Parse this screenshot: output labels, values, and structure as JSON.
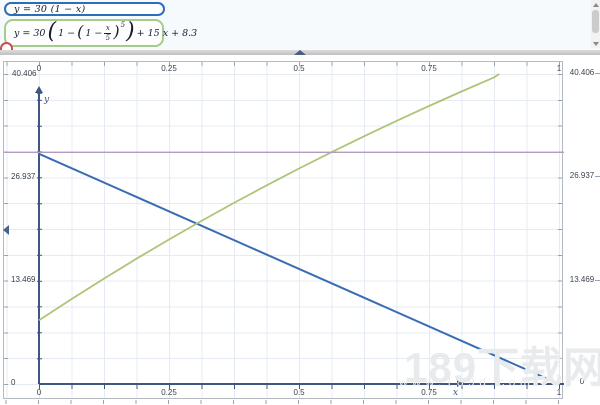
{
  "equation_panel": {
    "eq1": {
      "text": "y = 30 (1 − x)",
      "border_color": "#2e6db8"
    },
    "eq2": {
      "lhs": "y = 30",
      "outer_open": "(",
      "first_term": "1 −",
      "inner_open": "(",
      "second_term": "1 −",
      "frac_num": "x",
      "frac_den": "5",
      "inner_close": ")",
      "exponent": "5",
      "outer_close": ")",
      "tail": "+ 15 x + 8.3",
      "border_color": "#a5cb8d"
    }
  },
  "watermark": {
    "title": "189下载网",
    "url": "www.189d.com"
  },
  "chart_data": {
    "type": "line",
    "title": "",
    "xlabel": "x",
    "ylabel": "y",
    "xlim": [
      -0.07,
      1.01
    ],
    "ylim": [
      0,
      40.406
    ],
    "grid": true,
    "legend": "none",
    "x_tick_labels": [
      "0",
      "0.25",
      "0.5",
      "0.75",
      "1"
    ],
    "y_tick_labels": [
      "40.406",
      "26.937",
      "13.469",
      "0"
    ],
    "series": [
      {
        "name": "y = 30 (1 − x)",
        "color": "#3a6cb4",
        "width": 2,
        "points": [
          [
            0,
            30
          ],
          [
            1,
            0
          ]
        ]
      },
      {
        "name": "y = 30 (1 − (1 − x/5)^5) + 15 x + 8.3",
        "color": "#aec478",
        "width": 1.8,
        "points": [
          [
            0,
            8.3
          ],
          [
            0.0625,
            11.07
          ],
          [
            0.125,
            13.74
          ],
          [
            0.1875,
            16.33
          ],
          [
            0.25,
            18.84
          ],
          [
            0.3125,
            21.26
          ],
          [
            0.375,
            23.61
          ],
          [
            0.4375,
            25.88
          ],
          [
            0.5,
            28.09
          ],
          [
            0.5625,
            30.22
          ],
          [
            0.625,
            32.29
          ],
          [
            0.6875,
            34.29
          ],
          [
            0.75,
            36.24
          ],
          [
            0.8125,
            38.13
          ],
          [
            0.875,
            39.96
          ],
          [
            0.885,
            40.41
          ]
        ]
      },
      {
        "name": "y = 30 (horizontal line)",
        "color": "#b19cc2",
        "width": 1.4,
        "points": [
          [
            -0.067,
            30.2
          ],
          [
            1.0096,
            30.2
          ]
        ]
      }
    ]
  }
}
